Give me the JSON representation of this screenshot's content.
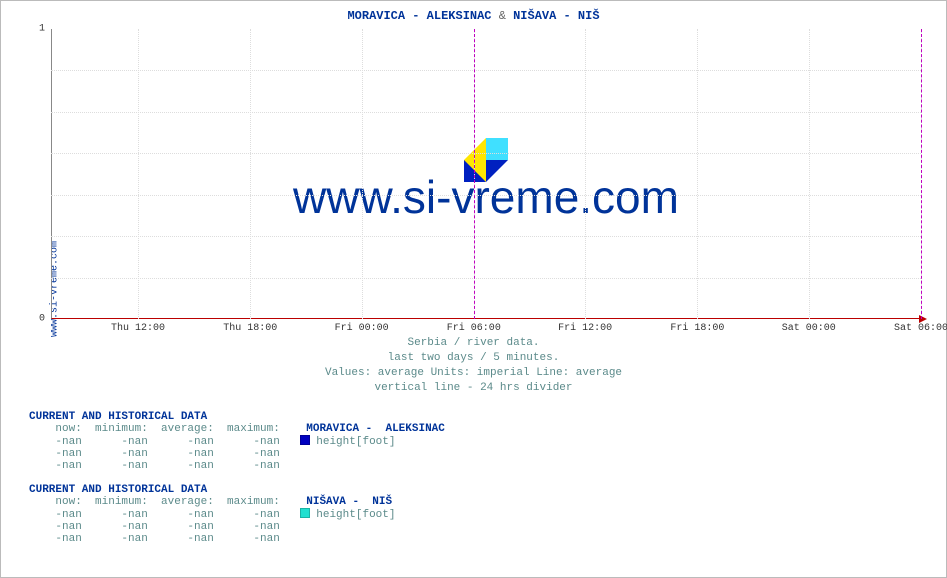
{
  "title_parts": {
    "a": "MORAVICA -  ALEKSINAC",
    "amp": "&",
    "b": "NIŠAVA -  NIŠ"
  },
  "side_label": "www.si-vreme.com",
  "watermark": "www.si-vreme.com",
  "chart": {
    "type": "line",
    "ylim": [
      0,
      1
    ],
    "yticks": [
      0,
      1
    ],
    "xticks": [
      "Thu 12:00",
      "Thu 18:00",
      "Fri 00:00",
      "Fri 06:00",
      "Fri 12:00",
      "Fri 18:00",
      "Sat 00:00",
      "Sat 06:00"
    ],
    "xtick_positions_pct": [
      10.0,
      22.9,
      35.7,
      48.6,
      61.4,
      74.3,
      87.1,
      100.0
    ],
    "divider_positions_pct": [
      48.6,
      100.0
    ],
    "grid_color": "#dddddd",
    "axis_x_color": "#bb0000",
    "axis_y_color": "#888888",
    "divider_color": "#c000c0",
    "background_color": "#ffffff",
    "tick_fontsize": 10,
    "grid_h_positions_pct": [
      14.3,
      28.6,
      42.9,
      57.1,
      71.4,
      85.7
    ]
  },
  "subtitle_lines": [
    "Serbia / river data.",
    "last two days / 5 minutes.",
    "Values: average  Units: imperial  Line: average",
    "vertical line - 24 hrs  divider"
  ],
  "blocks": [
    {
      "header": "CURRENT AND HISTORICAL DATA",
      "cols": [
        "now:",
        "minimum:",
        "average:",
        "maximum:"
      ],
      "series_label": "MORAVICA -  ALEKSINAC",
      "legend_color": "#0000c0",
      "legend_text": "height[foot]",
      "rows": [
        [
          "-nan",
          "-nan",
          "-nan",
          "-nan"
        ],
        [
          "-nan",
          "-nan",
          "-nan",
          "-nan"
        ],
        [
          "-nan",
          "-nan",
          "-nan",
          "-nan"
        ]
      ]
    },
    {
      "header": "CURRENT AND HISTORICAL DATA",
      "cols": [
        "now:",
        "minimum:",
        "average:",
        "maximum:"
      ],
      "series_label": "NIŠAVA -  NIŠ",
      "legend_color": "#20e0d0",
      "legend_text": "height[foot]",
      "rows": [
        [
          "-nan",
          "-nan",
          "-nan",
          "-nan"
        ],
        [
          "-nan",
          "-nan",
          "-nan",
          "-nan"
        ],
        [
          "-nan",
          "-nan",
          "-nan",
          "-nan"
        ]
      ]
    }
  ]
}
